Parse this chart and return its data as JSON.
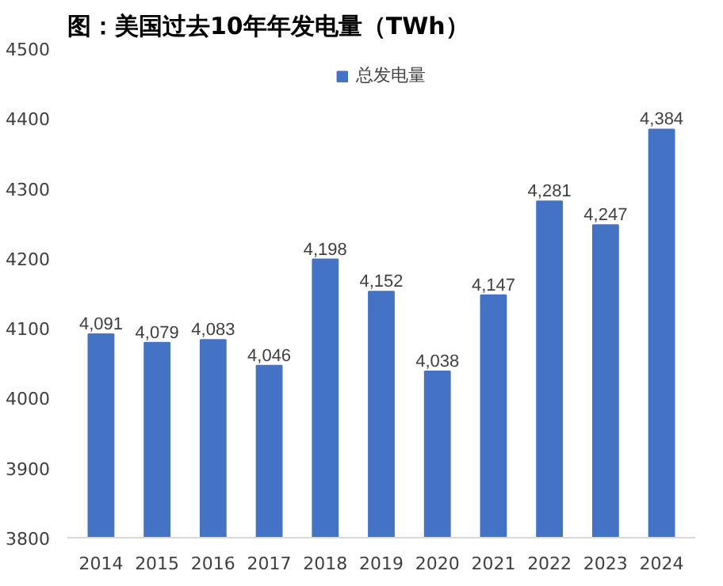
{
  "chart_data": {
    "type": "bar",
    "title": "图：美国过去10年年发电量（TWh）",
    "categories": [
      "2014",
      "2015",
      "2016",
      "2017",
      "2018",
      "2019",
      "2020",
      "2021",
      "2022",
      "2023",
      "2024"
    ],
    "series": [
      {
        "name": "总发电量",
        "color": "#4472c4",
        "values": [
          4091,
          4079,
          4083,
          4046,
          4198,
          4152,
          4038,
          4147,
          4281,
          4247,
          4384
        ]
      }
    ],
    "value_labels": [
      "4,091",
      "4,079",
      "4,083",
      "4,046",
      "4,198",
      "4,152",
      "4,038",
      "4,147",
      "4,281",
      "4,247",
      "4,384"
    ],
    "ylim": [
      3800,
      4500
    ],
    "yticks": [
      3800,
      3900,
      4000,
      4100,
      4200,
      4300,
      4400,
      4500
    ],
    "grid": false,
    "legend": "top"
  }
}
